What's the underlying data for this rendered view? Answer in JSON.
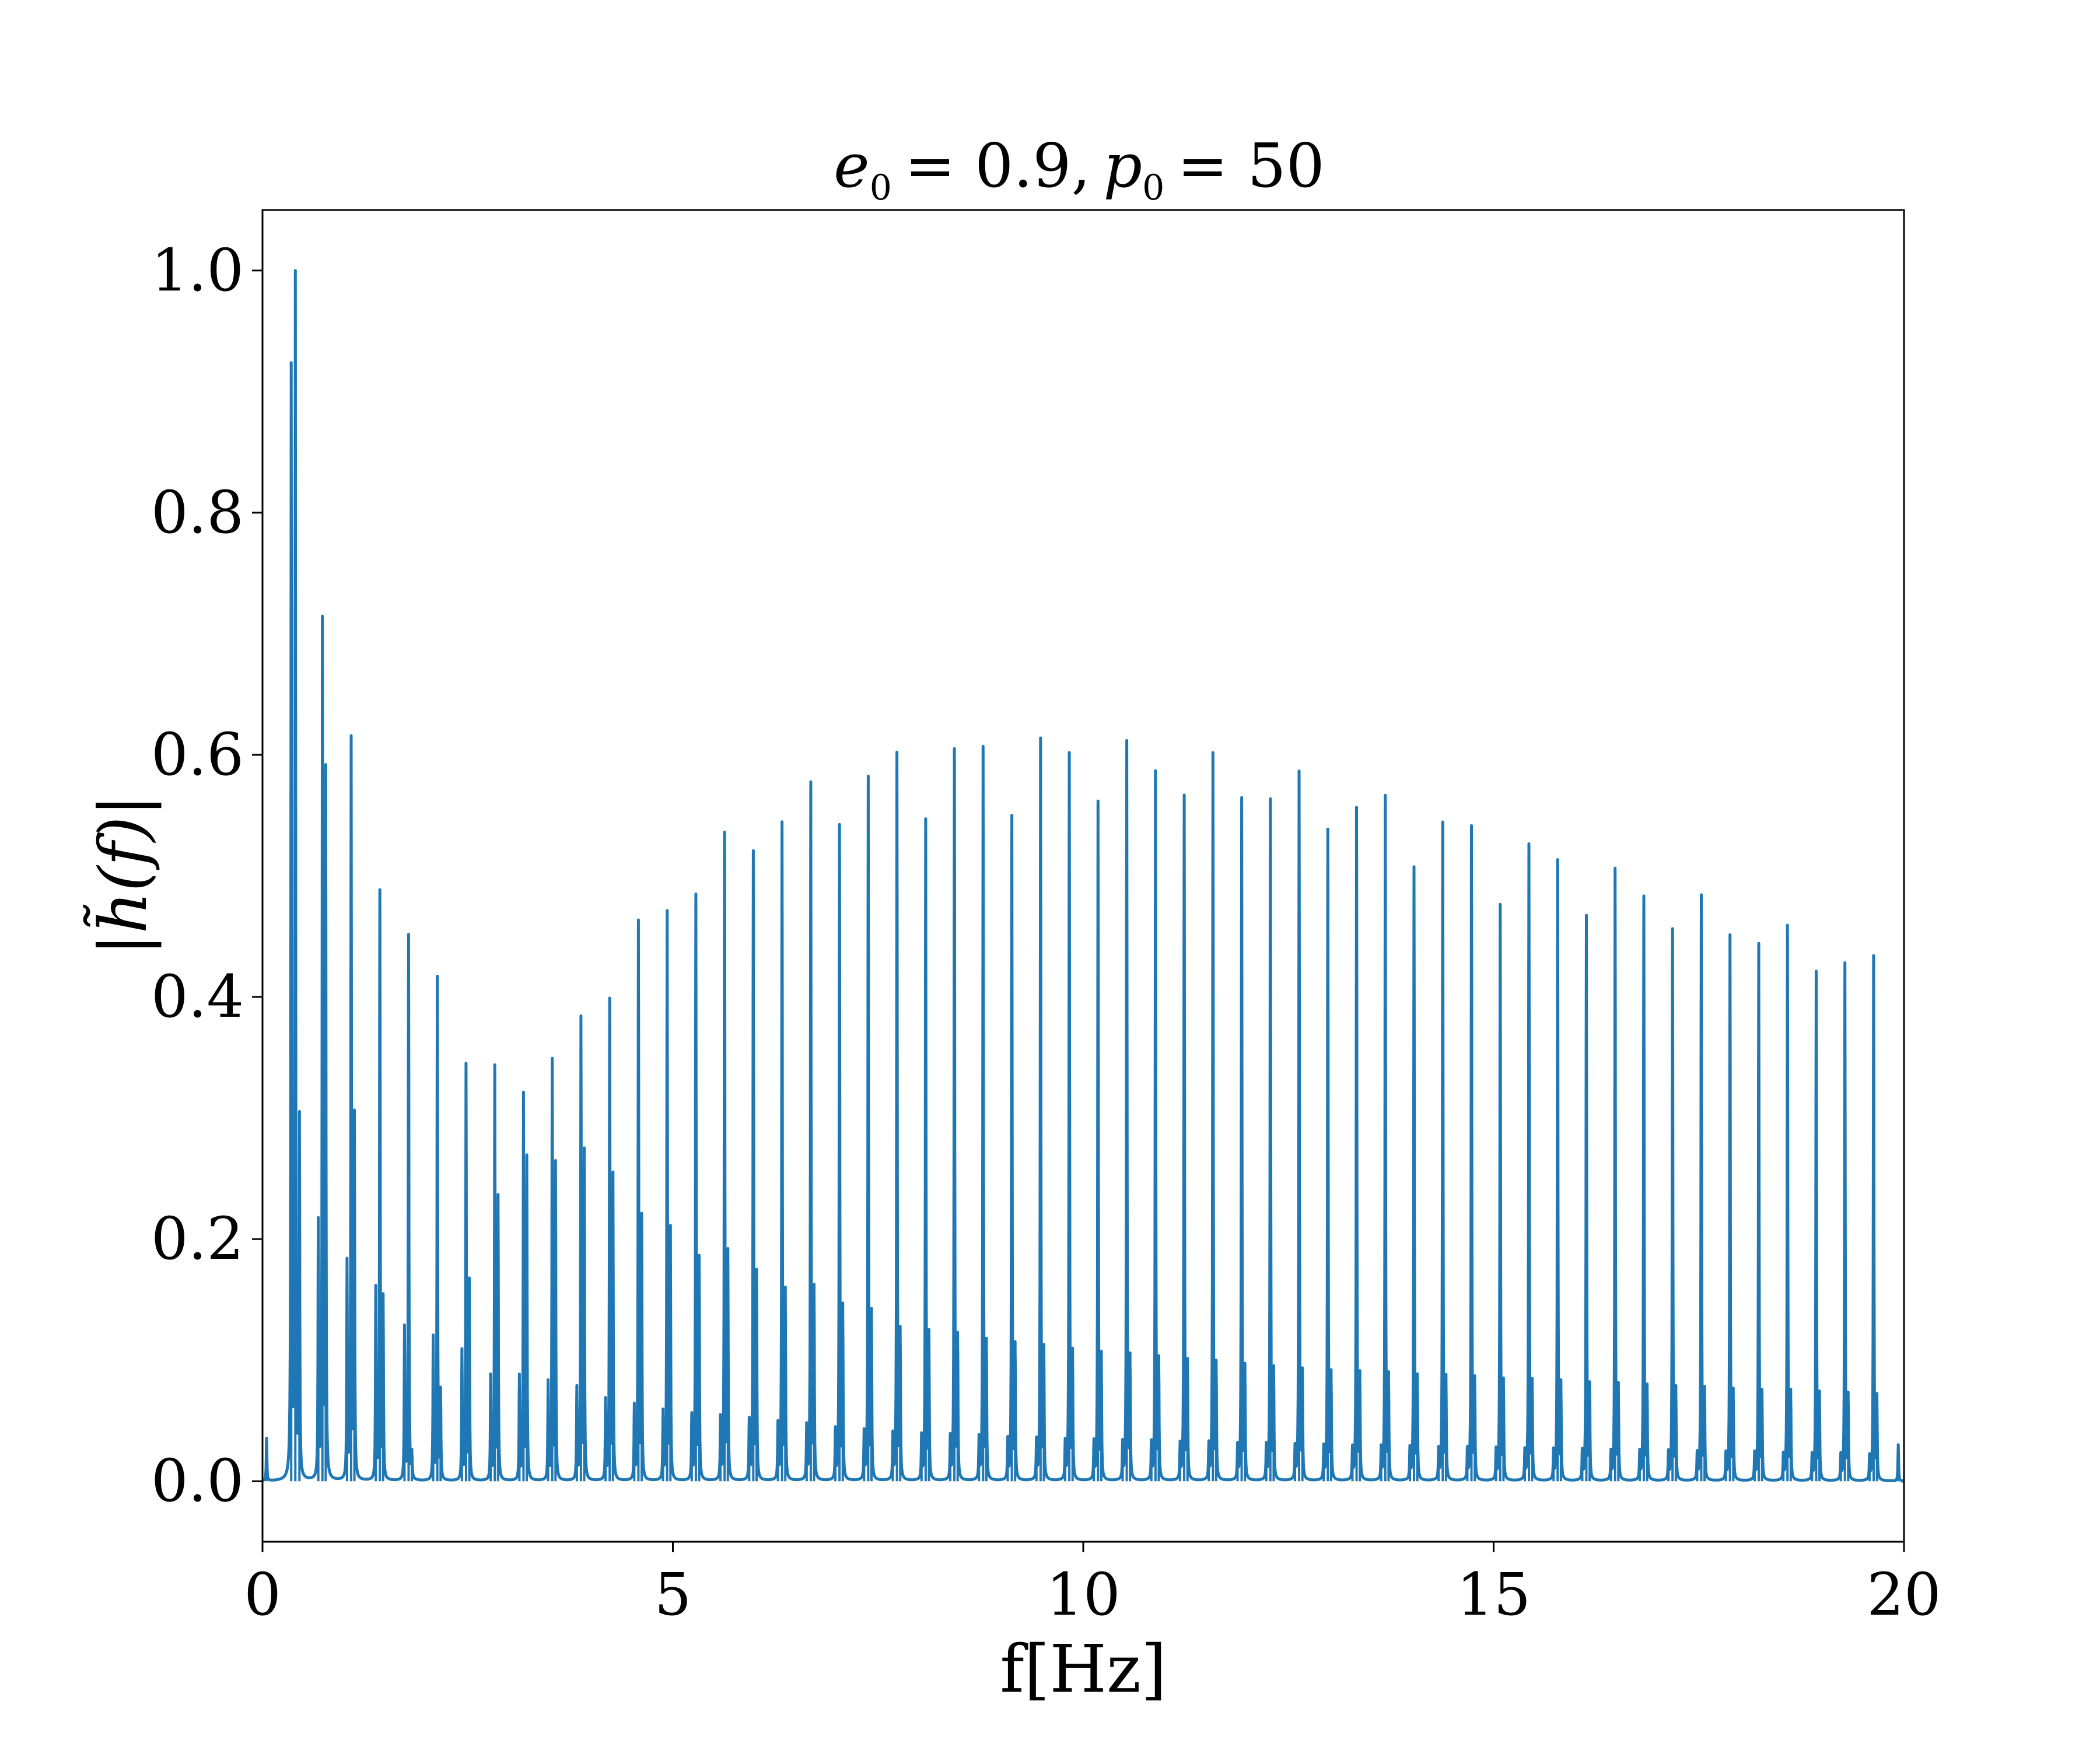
{
  "chart_data": {
    "type": "line",
    "title": {
      "e_symbol": "e",
      "e_sub": "0",
      "e_value": "= 0.9,",
      "p_symbol": "p",
      "p_sub": "0",
      "p_value": "= 50"
    },
    "xlabel": "f[Hz]",
    "ylabel": "|h̃(f)|",
    "xlim": [
      0,
      20
    ],
    "ylim": [
      -0.05,
      1.05
    ],
    "x_ticks": [
      0,
      5,
      10,
      15,
      20
    ],
    "x_tick_labels": [
      "0",
      "5",
      "10",
      "15",
      "20"
    ],
    "y_ticks": [
      0.0,
      0.2,
      0.4,
      0.6,
      0.8,
      1.0
    ],
    "y_tick_labels": [
      "0.0",
      "0.2",
      "0.4",
      "0.6",
      "0.8",
      "1.0"
    ],
    "grid": false,
    "series": [
      {
        "color": "#1f77b4",
        "harmonic_spacing_hz": 0.35,
        "peak_frequencies": [
          0.05,
          0.4,
          0.73,
          1.08,
          1.43,
          1.78,
          2.13,
          2.48,
          2.83,
          3.18,
          3.53,
          3.88,
          4.23,
          4.58,
          4.93,
          5.28,
          5.63,
          5.98,
          6.33,
          6.68,
          7.03,
          7.38,
          7.73,
          8.08,
          8.43,
          8.78,
          9.13,
          9.48,
          9.83,
          10.18,
          10.53,
          10.88,
          11.23,
          11.58,
          11.93,
          12.28,
          12.63,
          12.98,
          13.33,
          13.68,
          14.03,
          14.38,
          14.73,
          15.08,
          15.43,
          15.78,
          16.13,
          16.48,
          16.83,
          17.18,
          17.53,
          17.88,
          18.23,
          18.58,
          18.93,
          19.28,
          19.63,
          19.98
        ],
        "peak_values": [
          0.035,
          1.0,
          0.705,
          0.61,
          0.485,
          0.45,
          0.415,
          0.342,
          0.34,
          0.317,
          0.345,
          0.38,
          0.395,
          0.46,
          0.468,
          0.482,
          0.533,
          0.518,
          0.542,
          0.575,
          0.54,
          0.58,
          0.6,
          0.545,
          0.603,
          0.605,
          0.548,
          0.612,
          0.6,
          0.56,
          0.61,
          0.585,
          0.565,
          0.6,
          0.563,
          0.562,
          0.585,
          0.537,
          0.555,
          0.565,
          0.506,
          0.543,
          0.54,
          0.475,
          0.525,
          0.512,
          0.466,
          0.505,
          0.482,
          0.455,
          0.483,
          0.45,
          0.443,
          0.458,
          0.42,
          0.427,
          0.433,
          0.0
        ],
        "secondary_frequencies": [
          0.35,
          0.45,
          0.68,
          0.77,
          1.03,
          1.12,
          1.38,
          1.47,
          1.73,
          1.82,
          2.08,
          2.17,
          2.43,
          2.52,
          2.78,
          2.87,
          3.13,
          3.22,
          3.48,
          3.57,
          3.83,
          3.92,
          4.18,
          4.27,
          4.53,
          4.62,
          4.88,
          4.97,
          5.23,
          5.32,
          5.58,
          5.67,
          5.93,
          6.02,
          6.28,
          6.37,
          6.63,
          6.72,
          6.98,
          7.07,
          7.33,
          7.42,
          7.68,
          7.77,
          8.03,
          8.12,
          8.38,
          8.47,
          8.73,
          8.82,
          9.08,
          9.17,
          9.43,
          9.52,
          9.78,
          9.87,
          10.13,
          10.22,
          10.48,
          10.57,
          10.83,
          10.92,
          11.18,
          11.27,
          11.53,
          11.62,
          11.88,
          11.97,
          12.23,
          12.32,
          12.58,
          12.67,
          12.93,
          13.02,
          13.28,
          13.37,
          13.63,
          13.72,
          13.98,
          14.07,
          14.33,
          14.42,
          14.68,
          14.77,
          15.03,
          15.12,
          15.38,
          15.47,
          15.73,
          15.82,
          16.08,
          16.17,
          16.43,
          16.52,
          16.78,
          16.87,
          17.13,
          17.22,
          17.48,
          17.57,
          17.83,
          17.92,
          18.18,
          18.27,
          18.53,
          18.62,
          18.88,
          18.97,
          19.23,
          19.32,
          19.58,
          19.67,
          19.93
        ],
        "secondary_values": [
          0.915,
          0.295,
          0.21,
          0.582,
          0.178,
          0.298,
          0.157,
          0.148,
          0.125,
          0.02,
          0.117,
          0.072,
          0.106,
          0.163,
          0.085,
          0.232,
          0.085,
          0.265,
          0.08,
          0.26,
          0.075,
          0.27,
          0.065,
          0.25,
          0.06,
          0.215,
          0.055,
          0.205,
          0.052,
          0.18,
          0.05,
          0.185,
          0.048,
          0.168,
          0.045,
          0.153,
          0.043,
          0.155,
          0.04,
          0.14,
          0.038,
          0.135,
          0.036,
          0.12,
          0.035,
          0.118,
          0.034,
          0.115,
          0.033,
          0.11,
          0.032,
          0.108,
          0.031,
          0.105,
          0.03,
          0.102,
          0.03,
          0.1,
          0.029,
          0.098,
          0.029,
          0.096,
          0.028,
          0.094,
          0.028,
          0.092,
          0.027,
          0.09,
          0.027,
          0.088,
          0.026,
          0.086,
          0.026,
          0.085,
          0.025,
          0.084,
          0.025,
          0.083,
          0.025,
          0.082,
          0.024,
          0.081,
          0.024,
          0.08,
          0.024,
          0.079,
          0.023,
          0.078,
          0.023,
          0.077,
          0.023,
          0.076,
          0.022,
          0.075,
          0.022,
          0.074,
          0.022,
          0.073,
          0.021,
          0.072,
          0.021,
          0.071,
          0.021,
          0.07,
          0.02,
          0.07,
          0.02,
          0.069,
          0.02,
          0.068,
          0.019,
          0.067,
          0.03
        ]
      }
    ]
  }
}
